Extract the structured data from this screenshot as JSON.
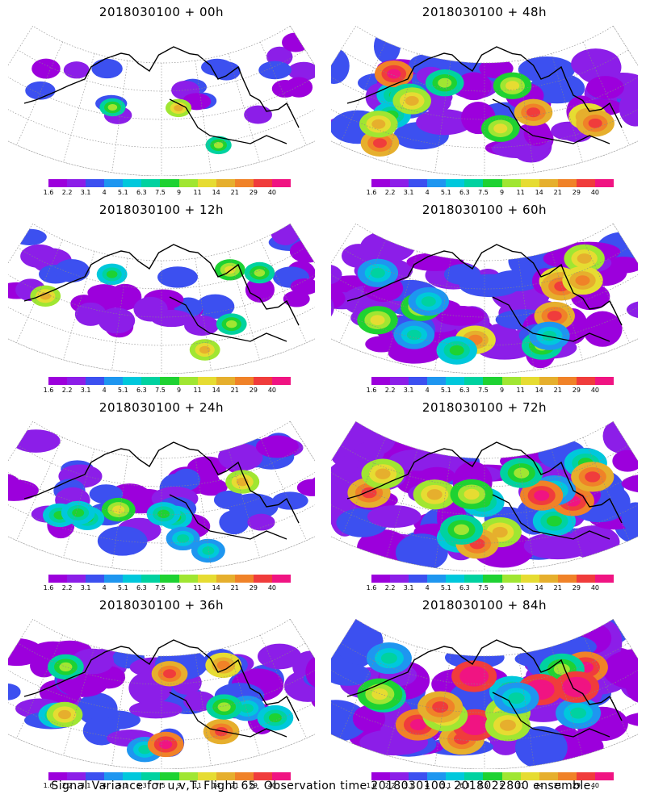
{
  "panels": [
    {
      "title": "2018030100 + 00h",
      "intensity": 0.15
    },
    {
      "title": "2018030100 + 48h",
      "intensity": 0.7
    },
    {
      "title": "2018030100 + 12h",
      "intensity": 0.35
    },
    {
      "title": "2018030100 + 60h",
      "intensity": 0.8
    },
    {
      "title": "2018030100 + 24h",
      "intensity": 0.5
    },
    {
      "title": "2018030100 + 72h",
      "intensity": 0.9
    },
    {
      "title": "2018030100 + 36h",
      "intensity": 0.6
    },
    {
      "title": "2018030100 + 84h",
      "intensity": 1.0
    }
  ],
  "colorbar": {
    "ticks": [
      "1.6",
      "2.2",
      "3.1",
      "4",
      "5.1",
      "6.3",
      "7.5",
      "9",
      "11",
      "14",
      "21",
      "29",
      "40"
    ],
    "colors": [
      "#9c00dc",
      "#8c1ee8",
      "#3c50f0",
      "#1e96f0",
      "#00c8dc",
      "#00d2a0",
      "#1ed232",
      "#a0e632",
      "#e6dc32",
      "#e6af2d",
      "#f08228",
      "#f03c3c",
      "#f01482"
    ]
  },
  "caption": "Signal Variance for u,v,T. Flight 65. Observation time 2018030100. 2018022800 ensemble."
}
